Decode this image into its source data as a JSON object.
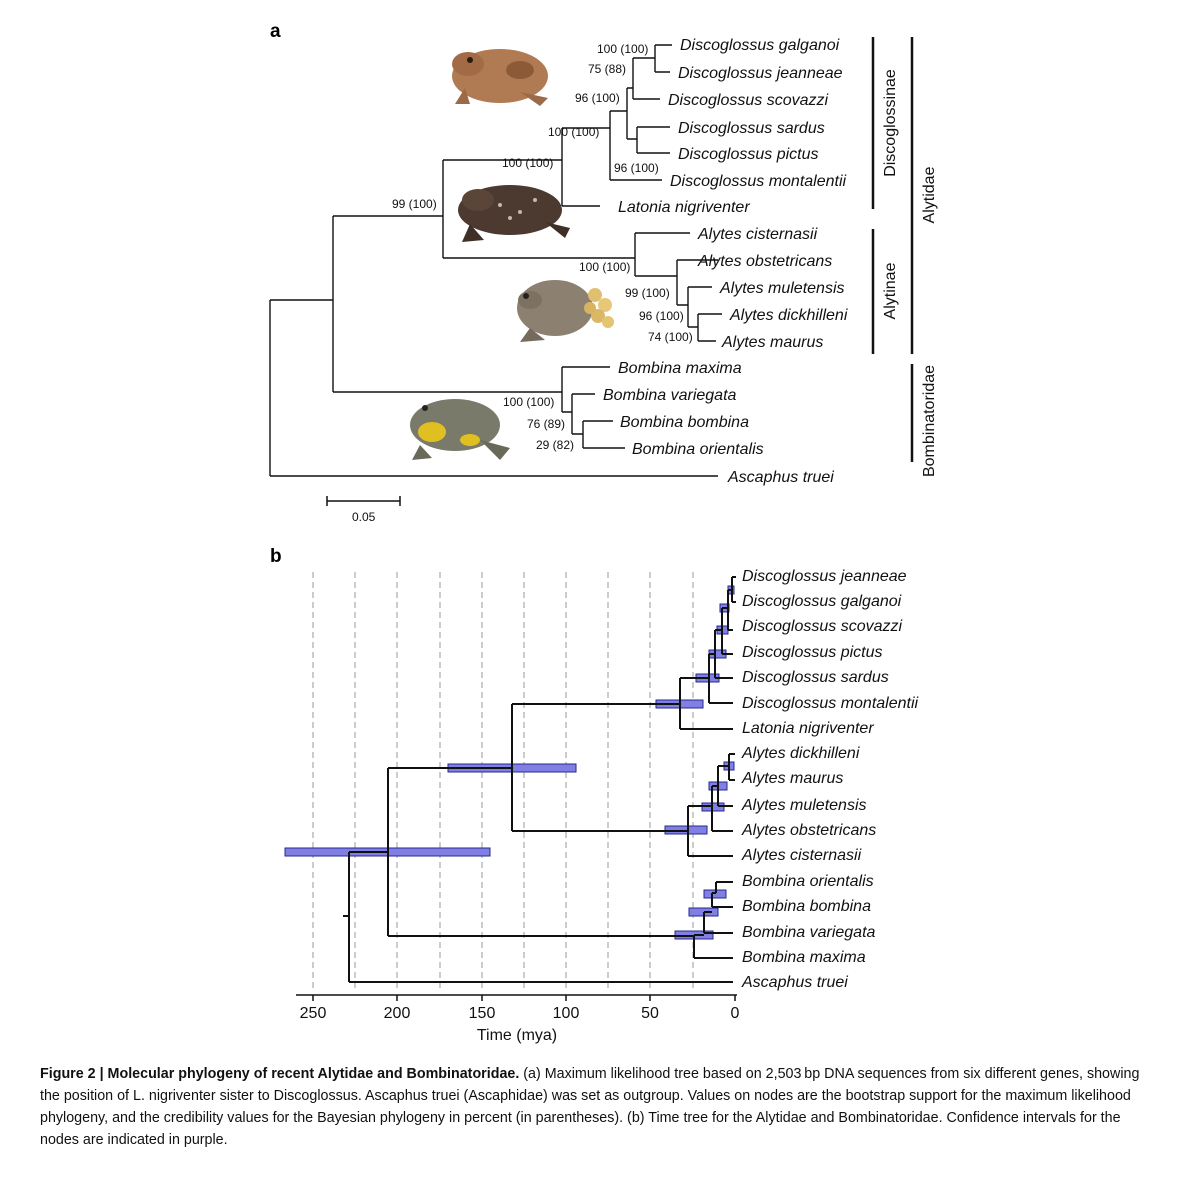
{
  "panel_a": {
    "label": "a",
    "taxa": [
      "Discoglossus galganoi",
      "Discoglossus jeanneae",
      "Discoglossus scovazzi",
      "Discoglossus sardus",
      "Discoglossus pictus",
      "Discoglossus montalentii",
      "Latonia nigriventer",
      "Alytes cisternasii",
      "Alytes obstetricans",
      "Alytes muletensis",
      "Alytes dickhilleni",
      "Alytes maurus",
      "Bombina maxima",
      "Bombina variegata",
      "Bombina bombina",
      "Bombina orientalis",
      "Ascaphus truei"
    ],
    "supports": [
      "100 (100)",
      "75 (88)",
      "96 (100)",
      "100 (100)",
      "100 (100)",
      "96 (100)",
      "99 (100)",
      "100 (100)",
      "99 (100)",
      "96 (100)",
      "74 (100)",
      "100 (100)",
      "76 (89)",
      "29 (82)"
    ],
    "clades": {
      "discoglossinae": "Discoglossinae",
      "alytinae": "Alytinae",
      "alytidae": "Alytidae",
      "bombinatoridae": "Bombinatoridae"
    },
    "scale_label": "0.05"
  },
  "panel_b": {
    "label": "b",
    "taxa": [
      "Discoglossus jeanneae",
      "Discoglossus galganoi",
      "Discoglossus scovazzi",
      "Discoglossus pictus",
      "Discoglossus sardus",
      "Discoglossus montalentii",
      "Latonia nigriventer",
      "Alytes dickhilleni",
      "Alytes maurus",
      "Alytes muletensis",
      "Alytes obstetricans",
      "Alytes cisternasii",
      "Bombina orientalis",
      "Bombina bombina",
      "Bombina variegata",
      "Bombina maxima",
      "Ascaphus truei"
    ],
    "axis_ticks": [
      "250",
      "200",
      "150",
      "100",
      "50",
      "0"
    ],
    "axis_title": "Time (mya)",
    "ci_color": "#7f7fe6"
  },
  "caption": {
    "title": "Figure 2 | Molecular phylogeny of recent Alytidae and Bombinatoridae.",
    "body": " (a) Maximum likelihood tree based on 2,503 bp DNA sequences from six different genes, showing the position of L. nigriventer sister to Discoglossus. Ascaphus truei (Ascaphidae) was set as outgroup. Values on nodes are the bootstrap support for the maximum likelihood phylogeny, and the credibility values for the Bayesian phylogeny in percent (in parentheses). (b) Time tree for the Alytidae and Bombinatoridae. Confidence intervals for the nodes are indicated in purple."
  }
}
